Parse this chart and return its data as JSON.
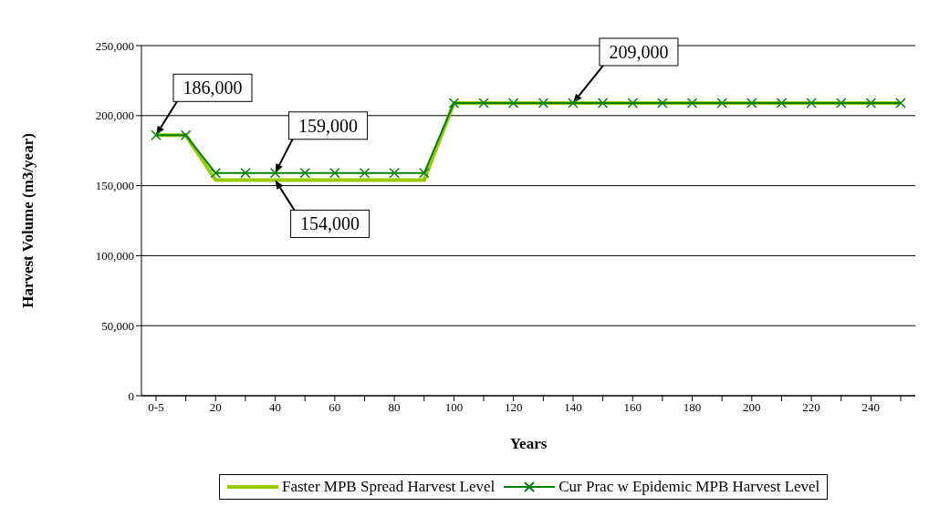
{
  "chart_data": {
    "type": "line",
    "xlabel": "Years",
    "ylabel": "Harvest Volume (m3/year)",
    "categories": [
      "0-5",
      null,
      "20",
      null,
      "40",
      null,
      "60",
      null,
      "80",
      null,
      "100",
      null,
      "120",
      null,
      "140",
      null,
      "160",
      null,
      "180",
      null,
      "200",
      null,
      "220",
      null,
      "240",
      null
    ],
    "series": [
      {
        "name": "Faster MPB Spread Harvest Level",
        "color": "#99cc00",
        "marker": "none",
        "values": [
          186000,
          186000,
          154000,
          154000,
          154000,
          154000,
          154000,
          154000,
          154000,
          154000,
          209000,
          209000,
          209000,
          209000,
          209000,
          209000,
          209000,
          209000,
          209000,
          209000,
          209000,
          209000,
          209000,
          209000,
          209000,
          209000
        ]
      },
      {
        "name": "Cur Prac w Epidemic MPB Harvest Level",
        "color": "#008000",
        "marker": "cross",
        "values": [
          186000,
          186000,
          159000,
          159000,
          159000,
          159000,
          159000,
          159000,
          159000,
          159000,
          209000,
          209000,
          209000,
          209000,
          209000,
          209000,
          209000,
          209000,
          209000,
          209000,
          209000,
          209000,
          209000,
          209000,
          209000,
          209000
        ]
      }
    ],
    "ylim": [
      0,
      250000
    ],
    "yticks": [
      0,
      {
        "value": 50000,
        "label": "50,000"
      },
      {
        "value": 100000,
        "label": "100,000"
      },
      {
        "value": 150000,
        "label": "150,000"
      },
      {
        "value": 200000,
        "label": "200,000"
      },
      {
        "value": 250000,
        "label": "250,000"
      }
    ],
    "grid": "y",
    "legend": "bottom",
    "annotations": [
      {
        "text": "186,000",
        "x": "0-5",
        "y": 186000
      },
      {
        "text": "159,000",
        "x": "40",
        "y": 159000
      },
      {
        "text": "154,000",
        "x": "40",
        "y": 154000
      },
      {
        "text": "209,000",
        "x": "140",
        "y": 209000
      }
    ]
  }
}
